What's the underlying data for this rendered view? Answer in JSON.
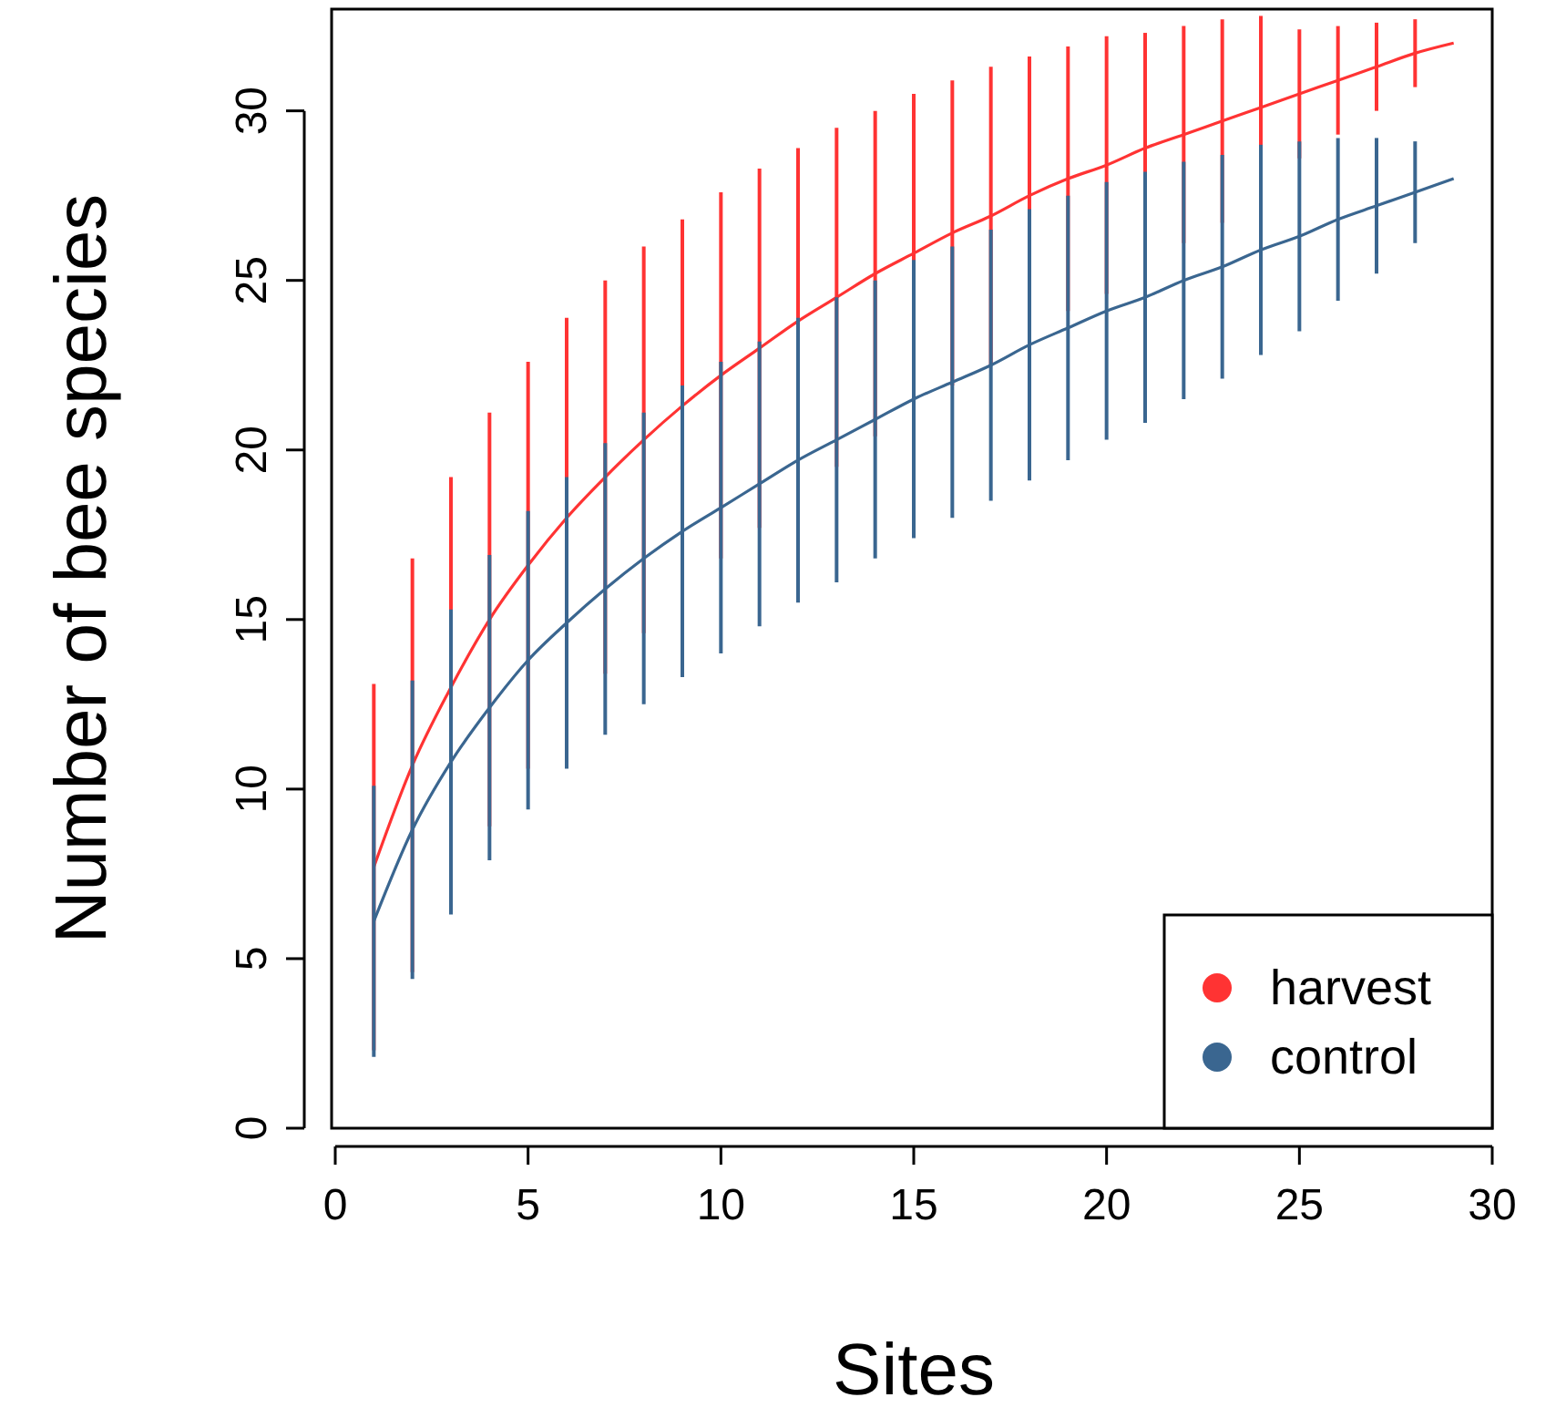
{
  "chart_data": {
    "type": "line",
    "xlabel": "Sites",
    "ylabel": "Number of bee species",
    "x": [
      1,
      2,
      3,
      4,
      5,
      6,
      7,
      8,
      9,
      10,
      11,
      12,
      13,
      14,
      15,
      16,
      17,
      18,
      19,
      20,
      21,
      22,
      23,
      24,
      25,
      26,
      27,
      28,
      29
    ],
    "xlim": [
      0,
      30
    ],
    "xticks": [
      0,
      5,
      10,
      15,
      20,
      25,
      30
    ],
    "ylim": [
      0,
      33
    ],
    "yticks": [
      0,
      5,
      10,
      15,
      20,
      25,
      30
    ],
    "series": [
      {
        "name": "harvest",
        "color": "#ff3333",
        "values": [
          7.7,
          10.7,
          13.0,
          15.0,
          16.6,
          18.0,
          19.2,
          20.3,
          21.3,
          22.2,
          23.0,
          23.8,
          24.5,
          25.2,
          25.8,
          26.4,
          26.9,
          27.5,
          28.0,
          28.4,
          28.9,
          29.3,
          29.7,
          30.1,
          30.5,
          30.9,
          31.3,
          31.7,
          32.0
        ],
        "errors": [
          5.4,
          6.1,
          6.2,
          6.1,
          6.0,
          5.9,
          5.8,
          5.7,
          5.5,
          5.4,
          5.3,
          5.1,
          5.0,
          4.8,
          4.7,
          4.5,
          4.4,
          4.1,
          3.9,
          3.8,
          3.4,
          3.2,
          3.0,
          2.7,
          1.9,
          1.6,
          1.3,
          1.0,
          null
        ]
      },
      {
        "name": "control",
        "color": "#3a6690",
        "values": [
          6.1,
          8.8,
          10.8,
          12.4,
          13.8,
          14.9,
          15.9,
          16.8,
          17.6,
          18.3,
          19.0,
          19.7,
          20.3,
          20.9,
          21.5,
          22.0,
          22.5,
          23.1,
          23.6,
          24.1,
          24.5,
          25.0,
          25.4,
          25.9,
          26.3,
          26.8,
          27.2,
          27.6,
          28.0
        ],
        "errors": [
          4.0,
          4.4,
          4.5,
          4.5,
          4.4,
          4.3,
          4.3,
          4.3,
          4.3,
          4.3,
          4.2,
          4.2,
          4.2,
          4.1,
          4.1,
          4.0,
          4.0,
          4.0,
          3.9,
          3.8,
          3.7,
          3.5,
          3.3,
          3.1,
          2.8,
          2.4,
          2.0,
          1.5,
          null
        ]
      }
    ],
    "legend": "bottom right",
    "grid": false,
    "marker": "none",
    "line_style": "solid"
  }
}
